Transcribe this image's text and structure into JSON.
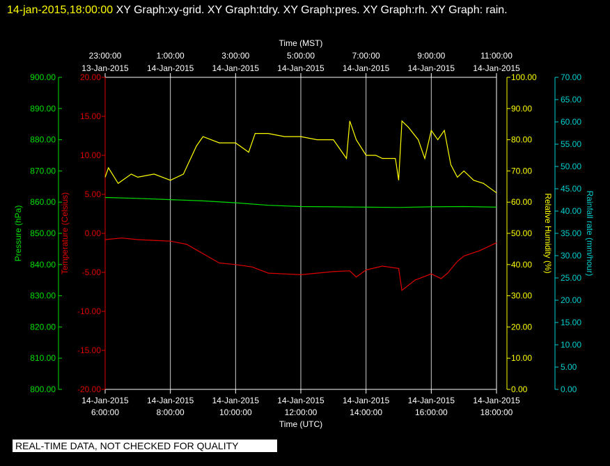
{
  "title": {
    "date": "14-jan-2015,18:00:00",
    "rest": " XY Graph:xy-grid.  XY Graph:tdry.  XY Graph:pres.  XY Graph:rh.  XY Graph: rain."
  },
  "footer_banner": "REAL-TIME DATA, NOT CHECKED FOR QUALITY",
  "colors": {
    "pressure": "#00e000",
    "temperature": "#e00000",
    "humidity": "#ffff00",
    "rainfall": "#00d0d0",
    "grid": "#d0d0d0",
    "frame": "#ffffff"
  },
  "chart_data": {
    "type": "line",
    "x_axis_bottom": {
      "label": "Time (UTC)",
      "ticks": [
        {
          "date": "14-Jan-2015",
          "time": "6:00:00"
        },
        {
          "date": "14-Jan-2015",
          "time": "8:00:00"
        },
        {
          "date": "14-Jan-2015",
          "time": "10:00:00"
        },
        {
          "date": "14-Jan-2015",
          "time": "12:00:00"
        },
        {
          "date": "14-Jan-2015",
          "time": "14:00:00"
        },
        {
          "date": "14-Jan-2015",
          "time": "16:00:00"
        },
        {
          "date": "14-Jan-2015",
          "time": "18:00:00"
        }
      ],
      "range_hours": [
        6,
        18
      ]
    },
    "x_axis_top": {
      "label": "Time (MST)",
      "ticks": [
        {
          "time": "23:00:00",
          "date": "13-Jan-2015"
        },
        {
          "time": "1:00:00",
          "date": "14-Jan-2015"
        },
        {
          "time": "3:00:00",
          "date": "14-Jan-2015"
        },
        {
          "time": "5:00:00",
          "date": "14-Jan-2015"
        },
        {
          "time": "7:00:00",
          "date": "14-Jan-2015"
        },
        {
          "time": "9:00:00",
          "date": "14-Jan-2015"
        },
        {
          "time": "11:00:00",
          "date": "14-Jan-2015"
        }
      ]
    },
    "y_axes": {
      "pressure": {
        "label": "Pressure (hPa)",
        "ylim": [
          800,
          900
        ],
        "ticks": [
          "900.00",
          "890.00",
          "880.00",
          "870.00",
          "860.00",
          "850.00",
          "840.00",
          "830.00",
          "820.00",
          "810.00",
          "800.00"
        ]
      },
      "temperature": {
        "label": "Temperature (Celsius)",
        "ylim": [
          -20,
          20
        ],
        "ticks": [
          "20.00",
          "15.00",
          "10.00",
          "5.00",
          "0.00",
          "-5.00",
          "-10.00",
          "-15.00",
          "-20.00"
        ]
      },
      "humidity": {
        "label": "Relative Humidity (%)",
        "ylim": [
          0,
          100
        ],
        "ticks": [
          "100.00",
          "90.00",
          "80.00",
          "70.00",
          "60.00",
          "50.00",
          "40.00",
          "30.00",
          "20.00",
          "10.00",
          "0.00"
        ]
      },
      "rainfall": {
        "label": "Rainfall rate (mm/hour)",
        "ylim": [
          0,
          70
        ],
        "ticks": [
          "70.00",
          "65.00",
          "60.00",
          "55.00",
          "50.00",
          "45.00",
          "40.00",
          "35.00",
          "30.00",
          "25.00",
          "20.00",
          "15.00",
          "10.00",
          "5.00",
          "0.00"
        ]
      }
    },
    "series": [
      {
        "axis": "temperature",
        "colorKey": "temperature",
        "x": [
          6.0,
          6.5,
          7.0,
          7.5,
          8.0,
          8.5,
          9.0,
          9.5,
          10.0,
          10.5,
          11.0,
          11.5,
          12.0,
          12.5,
          13.0,
          13.5,
          13.7,
          14.0,
          14.5,
          15.0,
          15.1,
          15.5,
          16.0,
          16.3,
          16.5,
          16.8,
          17.0,
          17.5,
          18.0
        ],
        "y": [
          -0.8,
          -0.6,
          -0.8,
          -0.9,
          -1.0,
          -1.4,
          -2.6,
          -3.8,
          -4.0,
          -4.3,
          -5.1,
          -5.2,
          -5.3,
          -5.1,
          -4.9,
          -4.8,
          -5.6,
          -4.7,
          -4.2,
          -4.5,
          -7.3,
          -6.0,
          -5.2,
          -5.8,
          -5.1,
          -3.6,
          -2.9,
          -2.2,
          -1.2
        ]
      },
      {
        "axis": "pressure",
        "colorKey": "pressure",
        "x": [
          6.0,
          7.0,
          8.0,
          9.0,
          10.0,
          11.0,
          12.0,
          13.0,
          14.0,
          15.0,
          16.0,
          17.0,
          18.0
        ],
        "y": [
          861.5,
          861.2,
          860.8,
          860.4,
          859.8,
          859.0,
          858.6,
          858.5,
          858.4,
          858.3,
          858.5,
          858.6,
          858.4
        ]
      },
      {
        "axis": "humidity",
        "colorKey": "humidity",
        "x": [
          6.0,
          6.1,
          6.4,
          6.8,
          7.0,
          7.5,
          8.0,
          8.4,
          8.8,
          9.0,
          9.5,
          10.0,
          10.4,
          10.6,
          11.0,
          11.5,
          12.0,
          12.5,
          13.0,
          13.4,
          13.5,
          13.7,
          14.0,
          14.3,
          14.5,
          14.9,
          15.0,
          15.1,
          15.3,
          15.6,
          15.8,
          16.0,
          16.2,
          16.4,
          16.6,
          16.8,
          17.0,
          17.3,
          17.6,
          18.0
        ],
        "y": [
          68,
          71,
          66,
          69,
          68,
          69,
          67,
          69,
          78,
          81,
          79,
          79,
          76,
          82,
          82,
          81,
          81,
          80,
          80,
          74,
          86,
          80,
          75,
          75,
          74,
          74,
          67,
          86,
          84,
          80,
          74,
          83,
          80,
          83,
          72,
          68,
          70,
          67,
          66,
          63
        ]
      }
    ],
    "grid": true
  }
}
